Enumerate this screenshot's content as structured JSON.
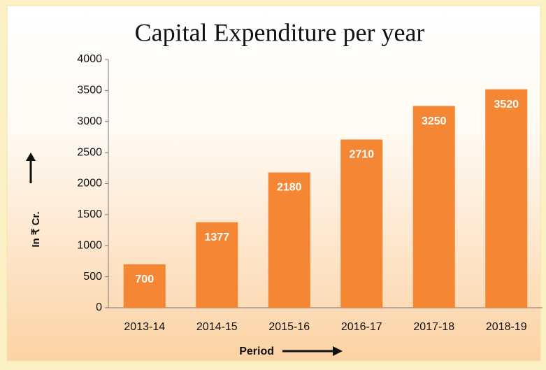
{
  "chart_data": {
    "type": "bar",
    "title": "Capital Expenditure per year",
    "x_label": "Period",
    "y_label": "In ₹ Cr.",
    "categories": [
      "2013-14",
      "2014-15",
      "2015-16",
      "2016-17",
      "2017-18",
      "2018-19"
    ],
    "values": [
      700,
      1377,
      2180,
      2710,
      3250,
      3520
    ],
    "color": "#f58634",
    "ylim": [
      0,
      4000
    ],
    "yticks": [
      0,
      500,
      1000,
      1500,
      2000,
      2500,
      3000,
      3500,
      4000
    ]
  }
}
